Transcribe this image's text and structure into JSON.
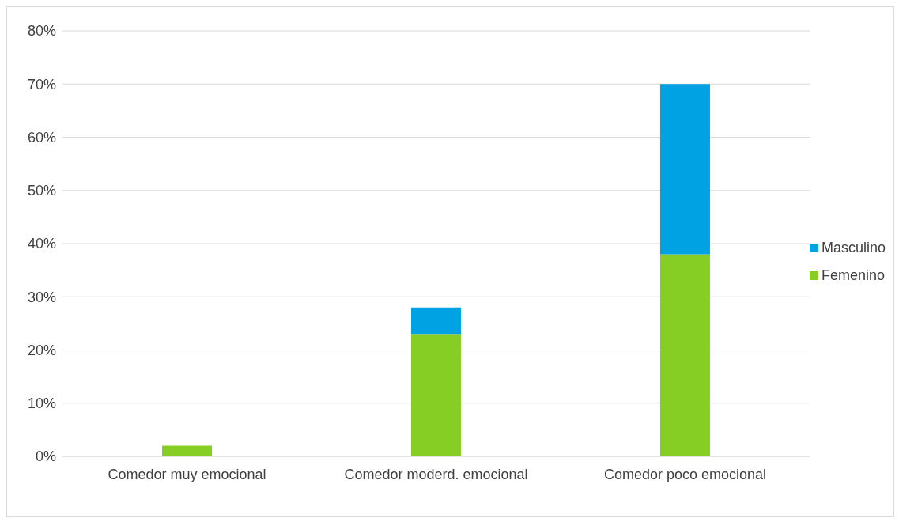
{
  "chart_data": {
    "type": "bar",
    "stacked": true,
    "categories": [
      "Comedor muy emocional",
      "Comedor moderd. emocional",
      "Comedor poco emocional"
    ],
    "series": [
      {
        "name": "Femenino",
        "color": "#86ce24",
        "values": [
          2,
          23,
          38
        ]
      },
      {
        "name": "Masculino",
        "color": "#00a2e3",
        "values": [
          0,
          5,
          32
        ]
      }
    ],
    "ylim": [
      0,
      80
    ],
    "yticks": [
      {
        "value": 0,
        "label": "0%"
      },
      {
        "value": 10,
        "label": "10%"
      },
      {
        "value": 20,
        "label": "20%"
      },
      {
        "value": 30,
        "label": "30%"
      },
      {
        "value": 40,
        "label": "40%"
      },
      {
        "value": 50,
        "label": "50%"
      },
      {
        "value": 60,
        "label": "60%"
      },
      {
        "value": 70,
        "label": "70%"
      },
      {
        "value": 80,
        "label": "80%"
      }
    ],
    "grid": "y",
    "legend": "right"
  }
}
